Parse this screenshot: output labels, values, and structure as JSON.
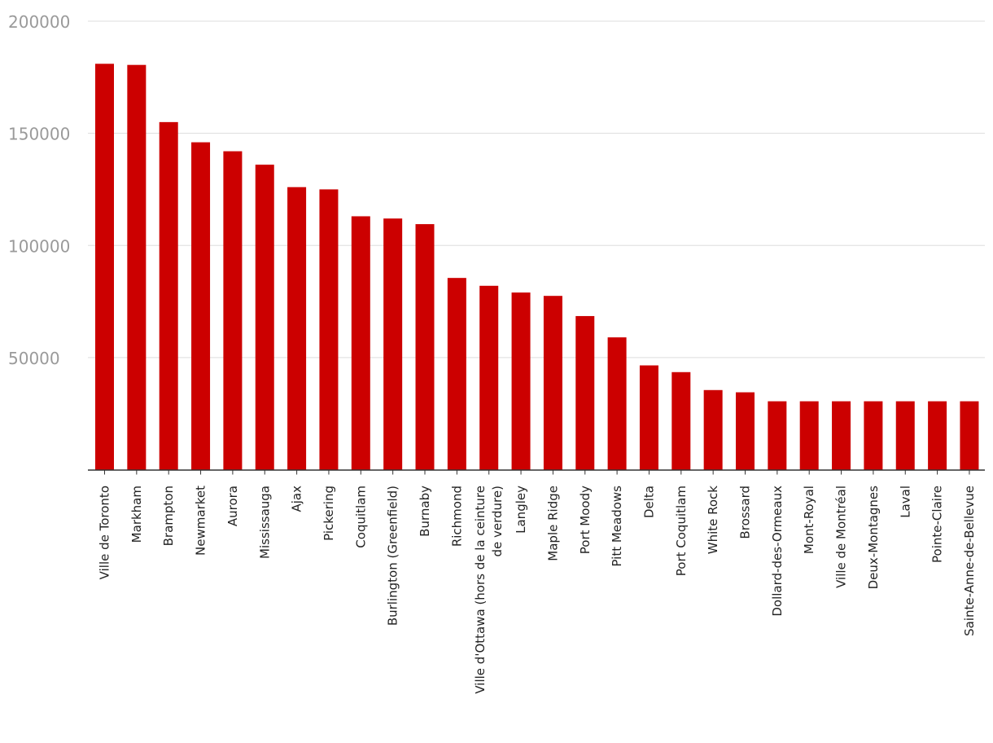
{
  "chart_data": {
    "type": "bar",
    "title": "",
    "xlabel": "",
    "ylabel": "",
    "ylim": [
      0,
      200000
    ],
    "yticks": [
      50000,
      100000,
      150000,
      200000
    ],
    "ytick_labels": [
      "50000",
      "100000",
      "150000",
      "200000"
    ],
    "grid": true,
    "bar_color": "#cc0000",
    "categories": [
      "Ville de Toronto",
      "Markham",
      "Brampton",
      "Newmarket",
      "Aurora",
      "Mississauga",
      "Ajax",
      "Pickering",
      "Coquitlam",
      "Burlington (Greenfield)",
      "Burnaby",
      "Richmond",
      "Ville d'Ottawa (hors de la ceinture de verdure)",
      "Langley",
      "Maple Ridge",
      "Port Moody",
      "Pitt Meadows",
      "Delta",
      "Port Coquitlam",
      "White Rock",
      "Brossard",
      "Dollard-des-Ormeaux",
      "Mont-Royal",
      "Ville de Montréal",
      "Deux-Montagnes",
      "Laval",
      "Pointe-Claire",
      "Sainte-Anne-de-Bellevue"
    ],
    "category_display_lines": [
      [
        "Ville de Toronto"
      ],
      [
        "Markham"
      ],
      [
        "Brampton"
      ],
      [
        "Newmarket"
      ],
      [
        "Aurora"
      ],
      [
        "Mississauga"
      ],
      [
        "Ajax"
      ],
      [
        "Pickering"
      ],
      [
        "Coquitlam"
      ],
      [
        "Burlington (Greenfield)"
      ],
      [
        "Burnaby"
      ],
      [
        "Richmond"
      ],
      [
        "Ville d'Ottawa (hors de la ceinture",
        "de verdure)"
      ],
      [
        "Langley"
      ],
      [
        "Maple Ridge"
      ],
      [
        "Port Moody"
      ],
      [
        "Pitt Meadows"
      ],
      [
        "Delta"
      ],
      [
        "Port Coquitlam"
      ],
      [
        "White Rock"
      ],
      [
        "Brossard"
      ],
      [
        "Dollard-des-Ormeaux"
      ],
      [
        "Mont-Royal"
      ],
      [
        "Ville de Montréal"
      ],
      [
        "Deux-Montagnes"
      ],
      [
        "Laval"
      ],
      [
        "Pointe-Claire"
      ],
      [
        "Sainte-Anne-de-Bellevue"
      ]
    ],
    "values": [
      181000,
      180500,
      155000,
      146000,
      142000,
      136000,
      126000,
      125000,
      113000,
      112000,
      109500,
      85500,
      82000,
      79000,
      77500,
      68500,
      59000,
      46500,
      43500,
      35500,
      34500,
      30500,
      30500,
      30500,
      30500,
      30500,
      30500,
      30500
    ]
  }
}
